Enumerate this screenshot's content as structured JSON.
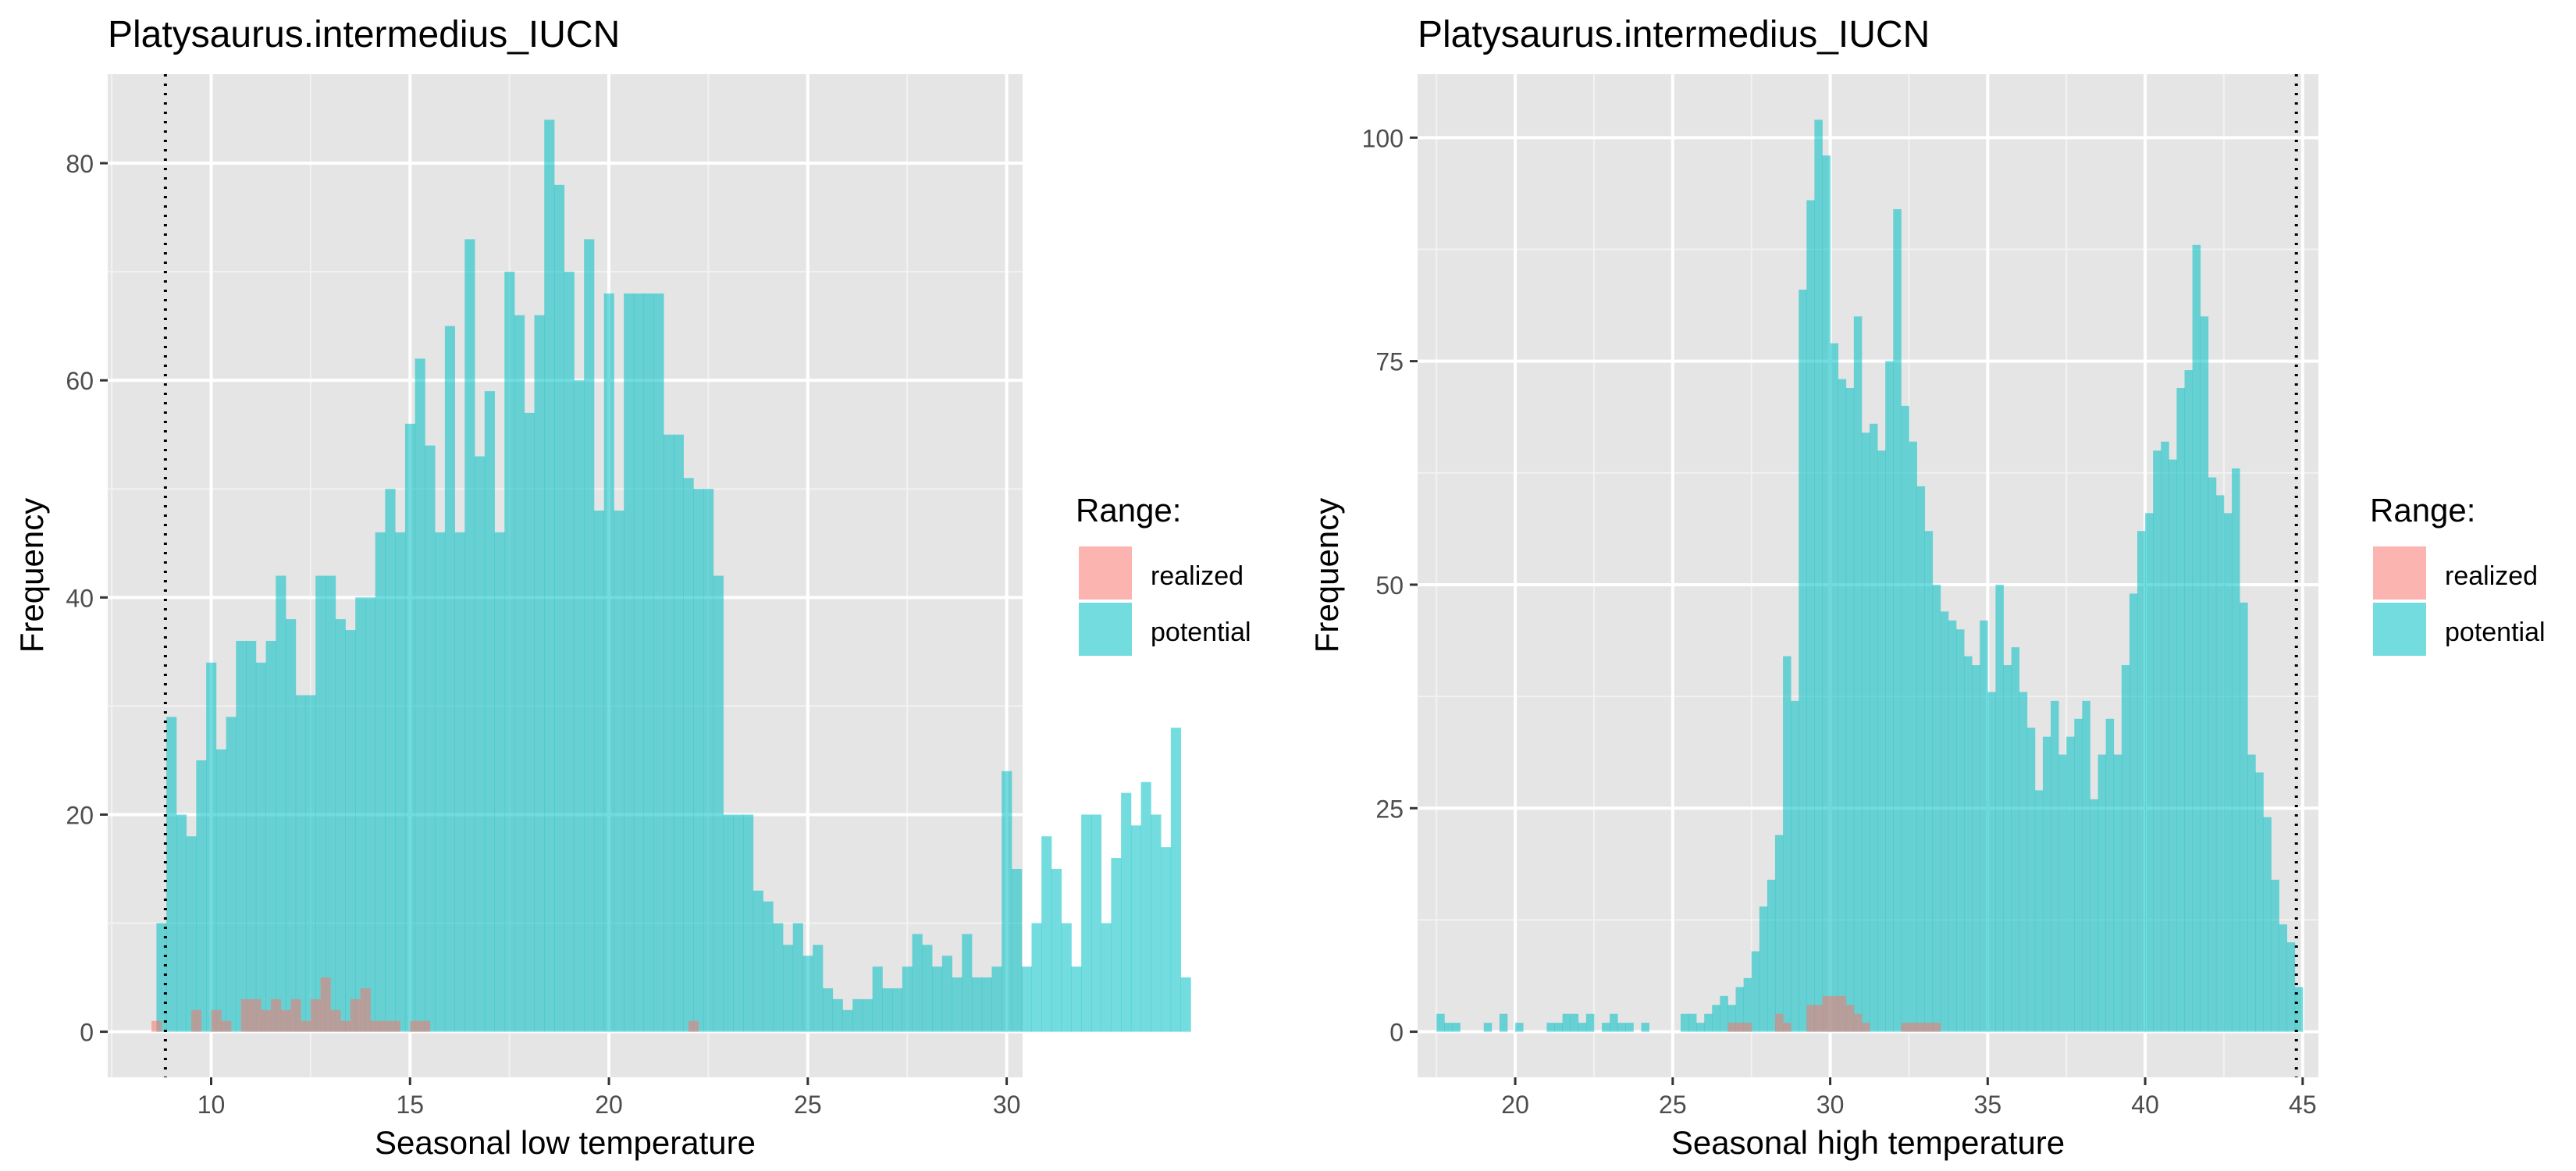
{
  "colors": {
    "panel_background": "#e5e5e5",
    "grid_major": "#ffffff",
    "grid_minor": "#f2f2f2",
    "realized": "#f8766d",
    "potential": "#00bfc4",
    "bar_opacity": 0.55,
    "text_dark": "#000000",
    "tick_text": "#4d4d4d",
    "reference_line": "#000000"
  },
  "chart_data": [
    {
      "type": "bar",
      "title": "Platysaurus.intermedius_IUCN",
      "xlabel": "Seasonal low temperature",
      "ylabel": "Frequency",
      "xlim": [
        7.4,
        30.4
      ],
      "ylim": [
        -4.2,
        88.2
      ],
      "x_ticks": [
        10,
        15,
        20,
        25,
        30
      ],
      "y_ticks": [
        0,
        20,
        40,
        60,
        80
      ],
      "grid": true,
      "bin_width": 0.25,
      "reference_line": {
        "x": 8.85,
        "style": "dotted"
      },
      "legend": {
        "title": "Range:",
        "position": "right",
        "entries": [
          "realized",
          "potential"
        ]
      },
      "series": [
        {
          "name": "potential",
          "x_start": 8.75,
          "values": [
            10,
            29,
            20,
            18,
            25,
            34,
            26,
            29,
            36,
            36,
            34,
            36,
            42,
            38,
            31,
            31,
            42,
            42,
            38,
            37,
            40,
            40,
            46,
            50,
            46,
            56,
            62,
            54,
            46,
            65,
            46,
            73,
            53,
            59,
            46,
            70,
            66,
            57,
            66,
            84,
            78,
            70,
            60,
            73,
            48,
            68,
            48,
            68,
            68,
            68,
            68,
            55,
            55,
            51,
            50,
            50,
            42,
            20,
            20,
            20,
            13,
            12,
            10,
            8,
            10,
            7,
            8,
            4,
            3,
            2,
            3,
            3,
            6,
            4,
            4,
            6,
            9,
            8,
            6,
            7,
            5,
            9,
            5,
            5,
            6,
            24,
            15,
            6,
            10,
            18,
            15,
            10,
            6,
            20,
            20,
            10,
            16,
            22,
            19,
            23,
            20,
            17,
            28,
            5
          ]
        },
        {
          "name": "realized",
          "points": [
            [
              8.625,
              1
            ],
            [
              9.625,
              2
            ],
            [
              10.125,
              2
            ],
            [
              10.375,
              1
            ],
            [
              10.875,
              3
            ],
            [
              11.125,
              3
            ],
            [
              11.375,
              2
            ],
            [
              11.625,
              3
            ],
            [
              11.875,
              2
            ],
            [
              12.125,
              3
            ],
            [
              12.375,
              1
            ],
            [
              12.625,
              3
            ],
            [
              12.875,
              5
            ],
            [
              13.125,
              2
            ],
            [
              13.375,
              1
            ],
            [
              13.625,
              3
            ],
            [
              13.875,
              4
            ],
            [
              14.125,
              1
            ],
            [
              14.375,
              1
            ],
            [
              14.625,
              1
            ],
            [
              15.125,
              1
            ],
            [
              15.375,
              1
            ],
            [
              22.125,
              1
            ]
          ]
        }
      ]
    },
    {
      "type": "bar",
      "title": "Platysaurus.intermedius_IUCN",
      "xlabel": "Seasonal high temperature",
      "ylabel": "Frequency",
      "xlim": [
        16.9,
        45.5
      ],
      "ylim": [
        -5.1,
        107.1
      ],
      "x_ticks": [
        20,
        25,
        30,
        35,
        40,
        45
      ],
      "y_ticks": [
        0,
        25,
        50,
        75,
        100
      ],
      "grid": true,
      "bin_width": 0.25,
      "reference_line": {
        "x": 44.8,
        "style": "dotted"
      },
      "legend": {
        "title": "Range:",
        "position": "right",
        "entries": [
          "realized",
          "potential"
        ]
      },
      "series": [
        {
          "name": "potential",
          "points": [
            [
              17.625,
              2
            ],
            [
              17.875,
              1
            ],
            [
              18.125,
              1
            ],
            [
              19.125,
              1
            ],
            [
              19.625,
              2
            ],
            [
              20.125,
              1
            ],
            [
              21.125,
              1
            ],
            [
              21.375,
              1
            ],
            [
              21.625,
              2
            ],
            [
              21.875,
              2
            ],
            [
              22.125,
              1
            ],
            [
              22.375,
              2
            ],
            [
              22.875,
              1
            ],
            [
              23.125,
              2
            ],
            [
              23.375,
              1
            ],
            [
              23.625,
              1
            ],
            [
              24.125,
              1
            ],
            [
              25.375,
              2
            ],
            [
              25.625,
              2
            ],
            [
              25.875,
              1
            ],
            [
              26.125,
              2
            ],
            [
              26.375,
              3
            ],
            [
              26.625,
              4
            ],
            [
              26.875,
              3
            ],
            [
              27.125,
              5
            ],
            [
              27.375,
              6
            ],
            [
              27.625,
              9
            ],
            [
              27.875,
              14
            ],
            [
              28.125,
              17
            ],
            [
              28.375,
              22
            ],
            [
              28.625,
              42
            ],
            [
              28.875,
              37
            ],
            [
              29.125,
              83
            ],
            [
              29.375,
              93
            ],
            [
              29.625,
              102
            ],
            [
              29.875,
              98
            ],
            [
              30.125,
              77
            ],
            [
              30.375,
              73
            ],
            [
              30.625,
              72
            ],
            [
              30.875,
              80
            ],
            [
              31.125,
              67
            ],
            [
              31.375,
              68
            ],
            [
              31.625,
              65
            ],
            [
              31.875,
              75
            ],
            [
              32.125,
              92
            ],
            [
              32.375,
              70
            ],
            [
              32.625,
              66
            ],
            [
              32.875,
              61
            ],
            [
              33.125,
              56
            ],
            [
              33.375,
              50
            ],
            [
              33.625,
              47
            ],
            [
              33.875,
              46
            ],
            [
              34.125,
              45
            ],
            [
              34.375,
              42
            ],
            [
              34.625,
              41
            ],
            [
              34.875,
              46
            ],
            [
              35.125,
              38
            ],
            [
              35.375,
              50
            ],
            [
              35.625,
              41
            ],
            [
              35.875,
              43
            ],
            [
              36.125,
              38
            ],
            [
              36.375,
              34
            ],
            [
              36.625,
              27
            ],
            [
              36.875,
              33
            ],
            [
              37.125,
              37
            ],
            [
              37.375,
              31
            ],
            [
              37.625,
              33
            ],
            [
              37.875,
              35
            ],
            [
              38.125,
              37
            ],
            [
              38.375,
              26
            ],
            [
              38.625,
              31
            ],
            [
              38.875,
              35
            ],
            [
              39.125,
              31
            ],
            [
              39.375,
              41
            ],
            [
              39.625,
              49
            ],
            [
              39.875,
              56
            ],
            [
              40.125,
              58
            ],
            [
              40.375,
              65
            ],
            [
              40.625,
              66
            ],
            [
              40.875,
              64
            ],
            [
              41.125,
              72
            ],
            [
              41.375,
              74
            ],
            [
              41.625,
              88
            ],
            [
              41.875,
              80
            ],
            [
              42.125,
              62
            ],
            [
              42.375,
              60
            ],
            [
              42.625,
              58
            ],
            [
              42.875,
              63
            ],
            [
              43.125,
              48
            ],
            [
              43.375,
              31
            ],
            [
              43.625,
              29
            ],
            [
              43.875,
              24
            ],
            [
              44.125,
              17
            ],
            [
              44.375,
              12
            ],
            [
              44.625,
              10
            ],
            [
              44.875,
              5
            ]
          ]
        },
        {
          "name": "realized",
          "points": [
            [
              26.875,
              1
            ],
            [
              27.125,
              1
            ],
            [
              27.375,
              1
            ],
            [
              28.375,
              2
            ],
            [
              28.625,
              1
            ],
            [
              29.375,
              3
            ],
            [
              29.625,
              3
            ],
            [
              29.875,
              4
            ],
            [
              30.125,
              4
            ],
            [
              30.375,
              4
            ],
            [
              30.625,
              3
            ],
            [
              30.875,
              2
            ],
            [
              31.125,
              1
            ],
            [
              32.375,
              1
            ],
            [
              32.625,
              1
            ],
            [
              32.875,
              1
            ],
            [
              33.125,
              1
            ],
            [
              33.375,
              1
            ]
          ]
        }
      ]
    }
  ]
}
